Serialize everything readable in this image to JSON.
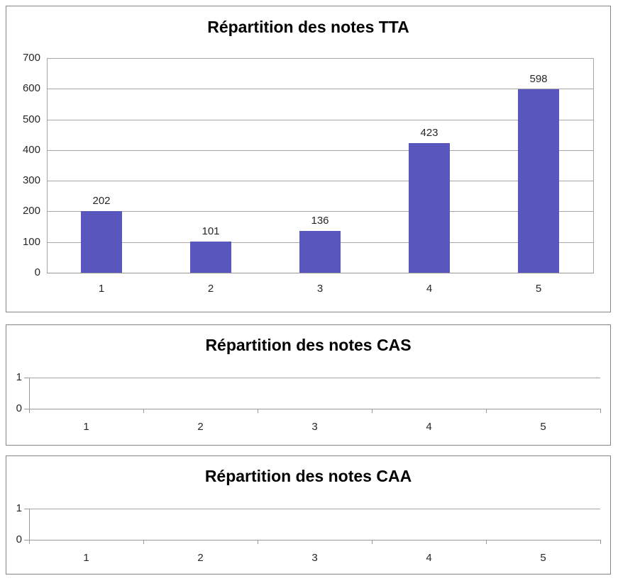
{
  "page": {
    "background": "#ffffff"
  },
  "colors": {
    "bar_fill": "#5957BD",
    "gridline": "#A6A6A6",
    "axis_line": "#999999",
    "frame_border": "#848484",
    "label_text": "#262626",
    "title_text": "#000000"
  },
  "chart_data": [
    {
      "type": "bar",
      "title": "Répartition des notes TTA",
      "categories": [
        "1",
        "2",
        "3",
        "4",
        "5"
      ],
      "values": [
        202,
        101,
        136,
        423,
        598
      ],
      "data_labels": [
        "202",
        "101",
        "136",
        "423",
        "598"
      ],
      "xlabel": "",
      "ylabel": "",
      "ylim": [
        0,
        700
      ],
      "yticks": [
        0,
        100,
        200,
        300,
        400,
        500,
        600,
        700
      ],
      "grid": true,
      "legend": false
    },
    {
      "type": "bar",
      "title": "Répartition des notes CAS",
      "categories": [
        "1",
        "2",
        "3",
        "4",
        "5"
      ],
      "values": [],
      "data_labels": [],
      "xlabel": "",
      "ylabel": "",
      "ylim": [
        0,
        1
      ],
      "yticks": [
        0,
        1
      ],
      "grid": true,
      "legend": false
    },
    {
      "type": "bar",
      "title": "Répartition des notes CAA",
      "categories": [
        "1",
        "2",
        "3",
        "4",
        "5"
      ],
      "values": [],
      "data_labels": [],
      "xlabel": "",
      "ylabel": "",
      "ylim": [
        0,
        1
      ],
      "yticks": [
        0,
        1
      ],
      "grid": true,
      "legend": false
    }
  ]
}
